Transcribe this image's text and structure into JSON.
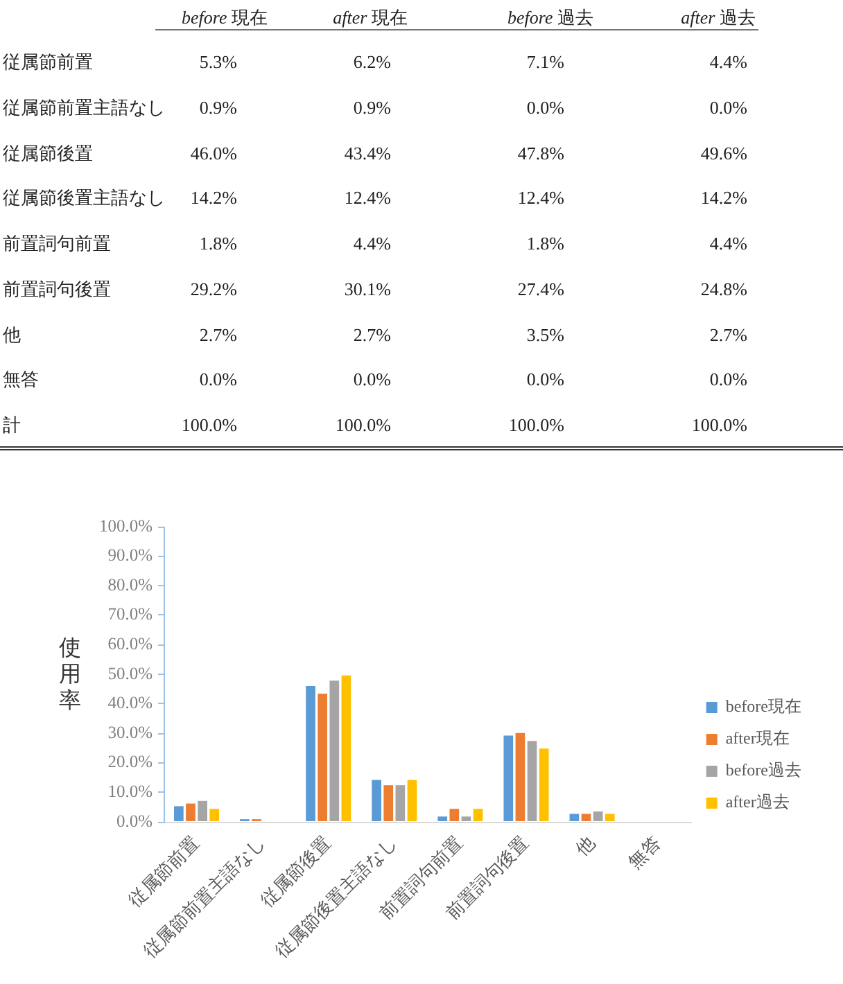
{
  "chart_data": [
    {
      "type": "other",
      "categories": [
        "従属節前置",
        "従属節前置主語なし",
        "従属節後置",
        "従属節後置主語なし",
        "前置詞句前置",
        "前置詞句後置",
        "他",
        "無答",
        "計"
      ],
      "annotations": [
        "before 現在",
        "after 現在",
        "before 過去",
        "after 過去",
        "5.3%",
        "6.2%",
        "7.1%",
        "4.4%",
        "0.9%",
        "0.9%",
        "0.0%",
        "0.0%",
        "46.0%",
        "43.4%",
        "47.8%",
        "49.6%",
        "14.2%",
        "12.4%",
        "12.4%",
        "14.2%",
        "1.8%",
        "4.4%",
        "1.8%",
        "4.4%",
        "29.2%",
        "30.1%",
        "27.4%",
        "24.8%",
        "2.7%",
        "2.7%",
        "3.5%",
        "2.7%",
        "0.0%",
        "0.0%",
        "0.0%",
        "0.0%",
        "100.0%",
        "100.0%",
        "100.0%",
        "100.0%"
      ]
    },
    {
      "type": "bar",
      "ylabel": "使用率",
      "categories": [
        "従属節前置",
        "従属節前置主語なし",
        "従属節後置",
        "従属節後置主語なし",
        "前置詞句前置",
        "前置詞句後置",
        "他",
        "無答"
      ],
      "series": [
        {
          "name": "before現在",
          "color": "#5b9bd5",
          "values": [
            5.3,
            0.9,
            46.0,
            14.2,
            1.8,
            29.2,
            2.7,
            0.0
          ]
        },
        {
          "name": "after現在",
          "color": "#ed7d31",
          "values": [
            6.2,
            0.9,
            43.4,
            12.4,
            4.4,
            30.1,
            2.7,
            0.0
          ]
        },
        {
          "name": "before過去",
          "color": "#a5a5a5",
          "values": [
            7.1,
            0.0,
            47.8,
            12.4,
            1.8,
            27.4,
            3.5,
            0.0
          ]
        },
        {
          "name": "after過去",
          "color": "#ffc000",
          "values": [
            4.4,
            0.0,
            49.6,
            14.2,
            4.4,
            24.8,
            2.7,
            0.0
          ]
        }
      ],
      "ylim": [
        0,
        100
      ],
      "yticks": [
        {
          "value": 0,
          "label": "0.0%"
        },
        {
          "value": 10,
          "label": "10.0%"
        },
        {
          "value": 20,
          "label": "20.0%"
        },
        {
          "value": 30,
          "label": "30.0%"
        },
        {
          "value": 40,
          "label": "40.0%"
        },
        {
          "value": 50,
          "label": "50.0%"
        },
        {
          "value": 60,
          "label": "60.0%"
        },
        {
          "value": 70,
          "label": "70.0%"
        },
        {
          "value": 80,
          "label": "80.0%"
        },
        {
          "value": 90,
          "label": "90.0%"
        },
        {
          "value": 100,
          "label": "100.0%"
        }
      ],
      "grid": false,
      "legend": "right"
    }
  ]
}
